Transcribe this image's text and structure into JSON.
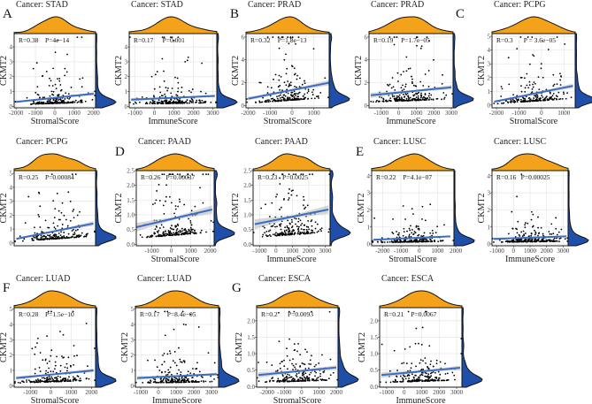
{
  "figure": {
    "y_label": "CKMT2",
    "colors": {
      "top_density": "#F5A21B",
      "right_density": "#1F4FA8",
      "fit_line": "#3B6CC4",
      "ci_band": "#BDBDBD",
      "points": "#000000",
      "grid": "#E6E6E6"
    }
  },
  "chart_data": [
    {
      "type": "scatter",
      "panel_letter": "A",
      "title": "Cancer: STAD",
      "xlabel": "StromalScore",
      "ylabel": "CKMT2",
      "stat_r": "R=0.38",
      "stat_p": "P=4e−14",
      "xticks": [
        -2000,
        -1000,
        0,
        1000,
        2000
      ],
      "xlim": [
        -2100,
        2100
      ],
      "yticks": [
        0,
        1,
        2,
        3,
        4
      ],
      "ylim": [
        -0.1,
        4.9
      ],
      "fit": [
        [
          -2000,
          0.3
        ],
        [
          2000,
          0.85
        ]
      ]
    },
    {
      "type": "scatter",
      "panel_letter": "",
      "title": "Cancer: STAD",
      "xlabel": "ImmuneScore",
      "ylabel": "CKMT2",
      "stat_r": "R=0.17",
      "stat_p": "P=0.001",
      "xticks": [
        -1000,
        0,
        1000,
        2000,
        3000
      ],
      "xlim": [
        -1300,
        3200
      ],
      "yticks": [
        0,
        1,
        2,
        3,
        4
      ],
      "ylim": [
        -0.1,
        4.9
      ],
      "fit": [
        [
          -1200,
          0.45
        ],
        [
          3100,
          0.7
        ]
      ]
    },
    {
      "type": "scatter",
      "panel_letter": "B",
      "title": "Cancer: PRAD",
      "xlabel": "StromalScore",
      "ylabel": "CKMT2",
      "stat_r": "R=0.32",
      "stat_p": "P=1.8e−13",
      "xticks": [
        -2000,
        -1000,
        0,
        1000
      ],
      "xlim": [
        -2100,
        1700
      ],
      "yticks": [
        0,
        2,
        4,
        6
      ],
      "ylim": [
        -0.2,
        6.3
      ],
      "fit": [
        [
          -2000,
          0.6
        ],
        [
          1700,
          2.0
        ]
      ]
    },
    {
      "type": "scatter",
      "panel_letter": "",
      "title": "Cancer: PRAD",
      "xlabel": "ImmuneScore",
      "ylabel": "CKMT2",
      "stat_r": "R=0.19",
      "stat_p": "P=1.7e−05",
      "xticks": [
        -1000,
        0,
        1000,
        2000,
        3000
      ],
      "xlim": [
        -1700,
        3100
      ],
      "yticks": [
        0,
        2,
        4,
        6
      ],
      "ylim": [
        -0.2,
        6.3
      ],
      "fit": [
        [
          -1600,
          0.9
        ],
        [
          3000,
          1.6
        ]
      ]
    },
    {
      "type": "scatter",
      "panel_letter": "C",
      "title": "Cancer: PCPG",
      "xlabel": "StromalScore",
      "ylabel": "CKMT2",
      "stat_r": "R=0.3",
      "stat_p": "P = 3.6e−05",
      "xticks": [
        -2000,
        -1000,
        0,
        1000
      ],
      "xlim": [
        -2200,
        1500
      ],
      "yticks": [
        0,
        1,
        2,
        3,
        4,
        5
      ],
      "ylim": [
        -0.2,
        5.2
      ],
      "fit": [
        [
          -2100,
          0.25
        ],
        [
          1400,
          1.4
        ]
      ]
    },
    {
      "type": "scatter",
      "panel_letter": "",
      "title": "Cancer: PCPG",
      "xlabel": "",
      "ylabel": "CKMT2",
      "stat_r": "R=0.25",
      "stat_p": "P=0.00084",
      "xticks": [],
      "xlim": [
        -2200,
        1500
      ],
      "yticks": [
        0,
        1,
        2,
        3,
        4,
        5
      ],
      "ylim": [
        -0.2,
        5.2
      ],
      "fit": [
        [
          -2100,
          0.3
        ],
        [
          1400,
          1.4
        ]
      ]
    },
    {
      "type": "scatter",
      "panel_letter": "D",
      "title": "Cancer: PAAD",
      "xlabel": "StromalScore",
      "ylabel": "CKMT2",
      "stat_r": "R=0.26",
      "stat_p": "P=0.00037",
      "xticks": [
        -1000,
        0,
        1000,
        2000
      ],
      "xlim": [
        -1800,
        2200
      ],
      "yticks": [
        0.0,
        0.5,
        1.0,
        1.5,
        2.0,
        2.5
      ],
      "ylim": [
        -0.05,
        2.5
      ],
      "fit": [
        [
          -1800,
          0.58
        ],
        [
          2100,
          1.18
        ]
      ]
    },
    {
      "type": "scatter",
      "panel_letter": "",
      "title": "Cancer: PAAD",
      "xlabel": "ImmuneScore",
      "ylabel": "CKMT2",
      "stat_r": "R=0.23",
      "stat_p": "P=0.0025",
      "xticks": [
        -1000,
        0,
        1000,
        2000,
        3000
      ],
      "xlim": [
        -1400,
        3300
      ],
      "yticks": [
        0.0,
        0.5,
        1.0,
        1.5,
        2.0,
        2.5
      ],
      "ylim": [
        -0.05,
        2.5
      ],
      "fit": [
        [
          -1300,
          0.68
        ],
        [
          3200,
          1.18
        ]
      ]
    },
    {
      "type": "scatter",
      "panel_letter": "E",
      "title": "Cancer: LUSC",
      "xlabel": "StromalScore",
      "ylabel": "CKMT2",
      "stat_r": "R=0.22",
      "stat_p": "P=4.1e−07",
      "xticks": [
        -2000,
        -1000,
        0,
        1000,
        2000
      ],
      "xlim": [
        -2600,
        1900
      ],
      "yticks": [
        0,
        1,
        2,
        3,
        4
      ],
      "ylim": [
        -0.1,
        4.3
      ],
      "fit": [
        [
          -2500,
          0.25
        ],
        [
          1700,
          0.45
        ]
      ]
    },
    {
      "type": "scatter",
      "panel_letter": "",
      "title": "Cancer: LUSC",
      "xlabel": "ImmuneScore",
      "ylabel": "CKMT2",
      "stat_r": "R=0.16",
      "stat_p": "P=0.00025",
      "xticks": [
        -1000,
        0,
        1000,
        2000,
        3000
      ],
      "xlim": [
        -1300,
        3300
      ],
      "yticks": [
        0,
        1,
        2,
        3,
        4
      ],
      "ylim": [
        -0.1,
        4.3
      ],
      "fit": [
        [
          -1200,
          0.3
        ],
        [
          3200,
          0.45
        ]
      ]
    },
    {
      "type": "scatter",
      "panel_letter": "F",
      "title": "Cancer: LUAD",
      "xlabel": "StromalScore",
      "ylabel": "CKMT2",
      "stat_r": "R=0.28",
      "stat_p": "P=1.5e−10",
      "xticks": [
        -1000,
        0,
        1000,
        2000
      ],
      "xlim": [
        -1800,
        2200
      ],
      "yticks": [
        0,
        1,
        2,
        3,
        4,
        5
      ],
      "ylim": [
        -0.1,
        5.1
      ],
      "fit": [
        [
          -1700,
          0.5
        ],
        [
          2100,
          1.0
        ]
      ]
    },
    {
      "type": "scatter",
      "panel_letter": "",
      "title": "Cancer: LUAD",
      "xlabel": "ImmuneScore",
      "ylabel": "CKMT2",
      "stat_r": "R=0.17",
      "stat_p": "P=8.4e−05",
      "xticks": [
        -1000,
        0,
        1000,
        2000,
        3000
      ],
      "xlim": [
        -1300,
        3400
      ],
      "yticks": [
        0,
        1,
        2,
        3,
        4,
        5
      ],
      "ylim": [
        -0.1,
        5.1
      ],
      "fit": [
        [
          -1200,
          0.5
        ],
        [
          3300,
          0.75
        ]
      ]
    },
    {
      "type": "scatter",
      "panel_letter": "G",
      "title": "Cancer: ESCA",
      "xlabel": "StromalScore",
      "ylabel": "CKMT2",
      "stat_r": "R=0.2",
      "stat_p": "P=0.0093",
      "xticks": [
        -2000,
        -1000,
        0,
        1000,
        2000
      ],
      "xlim": [
        -2600,
        2100
      ],
      "yticks": [
        0.0,
        0.5,
        1.0,
        1.5,
        2.0
      ],
      "ylim": [
        -0.02,
        2.4
      ],
      "fit": [
        [
          -2500,
          0.35
        ],
        [
          2000,
          0.58
        ]
      ]
    },
    {
      "type": "scatter",
      "panel_letter": "",
      "title": "Cancer: ESCA",
      "xlabel": "ImmuneScore",
      "ylabel": "CKMT2",
      "stat_r": "R=0.21",
      "stat_p": "P=0.0067",
      "xticks": [
        -1000,
        0,
        1000,
        2000,
        3000
      ],
      "xlim": [
        -1400,
        3300
      ],
      "yticks": [
        0.0,
        0.5,
        1.0,
        1.5,
        2.0
      ],
      "ylim": [
        -0.02,
        2.4
      ],
      "fit": [
        [
          -1300,
          0.35
        ],
        [
          3200,
          0.57
        ]
      ]
    }
  ]
}
